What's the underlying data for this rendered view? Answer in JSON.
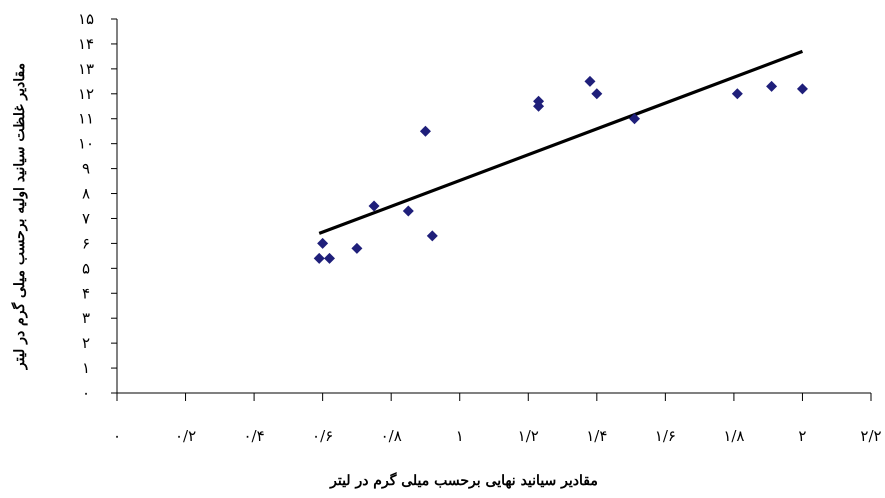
{
  "chart_data": {
    "type": "scatter",
    "title": "",
    "xlabel": "مقادیر سیانید نهایی برحسب میلی گرم در لیتر",
    "ylabel": "مقادیر غلظت سیانید اولیه برحسب میلی گرم در لیتر",
    "xlim": [
      0,
      2.2
    ],
    "ylim": [
      0,
      15
    ],
    "x_ticks": [
      0,
      0.2,
      0.4,
      0.6,
      0.8,
      1,
      1.2,
      1.4,
      1.6,
      1.8,
      2,
      2.2
    ],
    "x_tick_labels": [
      "۰",
      "۰/۲",
      "۰/۴",
      "۰/۶",
      "۰/۸",
      "۱",
      "۱/۲",
      "۱/۴",
      "۱/۶",
      "۱/۸",
      "۲",
      "۲/۲"
    ],
    "y_ticks": [
      0,
      1,
      2,
      3,
      4,
      5,
      6,
      7,
      8,
      9,
      10,
      11,
      12,
      13,
      14,
      15
    ],
    "y_tick_labels": [
      "۰",
      "۱",
      "۲",
      "۳",
      "۴",
      "۵",
      "۶",
      "۷",
      "۸",
      "۹",
      "۱۰",
      "۱۱",
      "۱۲",
      "۱۳",
      "۱۴",
      "۱۵"
    ],
    "grid": false,
    "legend": "none",
    "marker_color": "#1f1f7a",
    "trendline_color": "#000000",
    "series": [
      {
        "marker": "diamond",
        "x": [
          0.59,
          0.6,
          0.62,
          0.7,
          0.75,
          0.85,
          0.9,
          0.92,
          1.23,
          1.23,
          1.38,
          1.4,
          1.51,
          1.81,
          1.91,
          2.0
        ],
        "y": [
          5.4,
          6.0,
          5.4,
          5.8,
          7.5,
          7.3,
          10.5,
          6.3,
          11.7,
          11.5,
          12.5,
          12.0,
          11.0,
          12.0,
          12.3,
          12.2
        ]
      }
    ],
    "trendline": {
      "x": [
        0.59,
        2.0
      ],
      "y": [
        6.4,
        13.7
      ]
    }
  }
}
